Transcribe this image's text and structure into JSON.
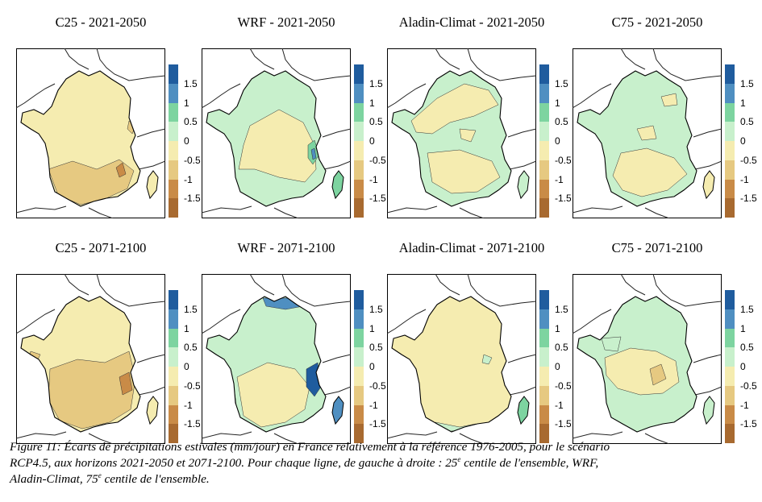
{
  "panels": [
    {
      "title": "C25 - 2021-2050",
      "scheme": "dry1"
    },
    {
      "title": "WRF - 2021-2050",
      "scheme": "wrf1"
    },
    {
      "title": "Aladin-Climat - 2021-2050",
      "scheme": "aladin1"
    },
    {
      "title": "C75 - 2021-2050",
      "scheme": "c75a"
    },
    {
      "title": "C25 - 2071-2100",
      "scheme": "dry2"
    },
    {
      "title": "WRF - 2071-2100",
      "scheme": "wrf2"
    },
    {
      "title": "Aladin-Climat - 2071-2100",
      "scheme": "aladin2"
    },
    {
      "title": "C75 - 2071-2100",
      "scheme": "c75b"
    }
  ],
  "colorbar": {
    "ticks": [
      "1.5",
      "1",
      "0.5",
      "0",
      "-0.5",
      "-1",
      "-1.5"
    ],
    "colors": [
      "#1f5c9e",
      "#4f8fc1",
      "#7dd4a0",
      "#c8f0cc",
      "#f5ecb0",
      "#e6c981",
      "#c98b47",
      "#a86a30"
    ]
  },
  "caption": {
    "line1": "Figure 11: Écarts de précipitations estivales (mm/jour) en France relativement à la référence 1976-2005, pour le scénario",
    "line2_a": "RCP4.5, aux horizons 2021-2050 et 2071-2100. Pour chaque ligne, de gauche à droite : 25",
    "sup1": "e",
    "line2_b": " centile de l'ensemble, WRF,",
    "line3_a": "Aladin-Climat, 75",
    "sup2": "e",
    "line3_b": " centile de l'ensemble."
  }
}
